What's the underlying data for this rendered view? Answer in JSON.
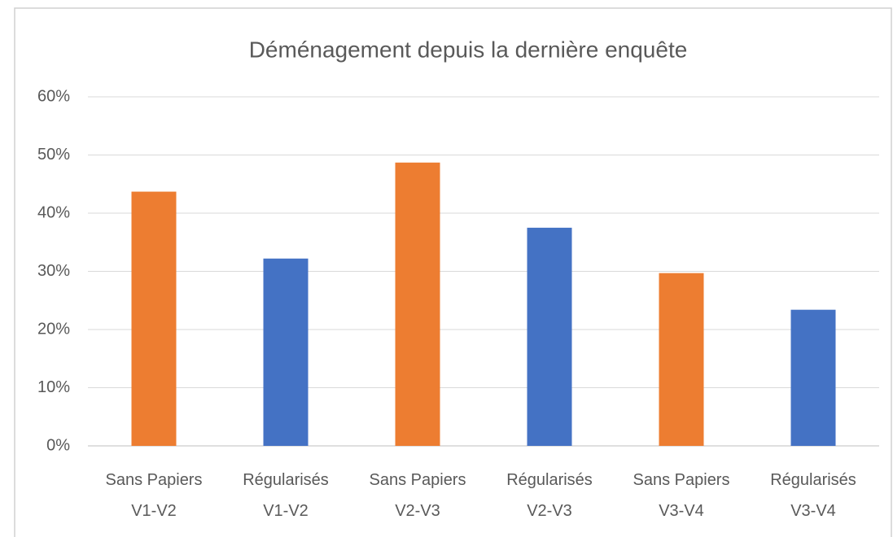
{
  "chart_data": {
    "type": "bar",
    "title": "Déménagement depuis la dernière enquête",
    "categories": [
      "Sans Papiers\nV1-V2",
      "Régularisés\nV1-V2",
      "Sans Papiers\nV2-V3",
      "Régularisés\nV2-V3",
      "Sans Papiers\nV3-V4",
      "Régularisés\nV3-V4"
    ],
    "values": [
      43.7,
      32.2,
      48.7,
      37.5,
      29.7,
      23.4
    ],
    "colors": [
      "#ed7d31",
      "#4472c4",
      "#ed7d31",
      "#4472c4",
      "#ed7d31",
      "#4472c4"
    ],
    "ylim": [
      0,
      60
    ],
    "yticks": [
      {
        "value": 0,
        "label": "0%"
      },
      {
        "value": 10,
        "label": "10%"
      },
      {
        "value": 20,
        "label": "20%"
      },
      {
        "value": 30,
        "label": "30%"
      },
      {
        "value": 40,
        "label": "40%"
      },
      {
        "value": 50,
        "label": "50%"
      },
      {
        "value": 60,
        "label": "60%"
      }
    ],
    "grid": true
  }
}
